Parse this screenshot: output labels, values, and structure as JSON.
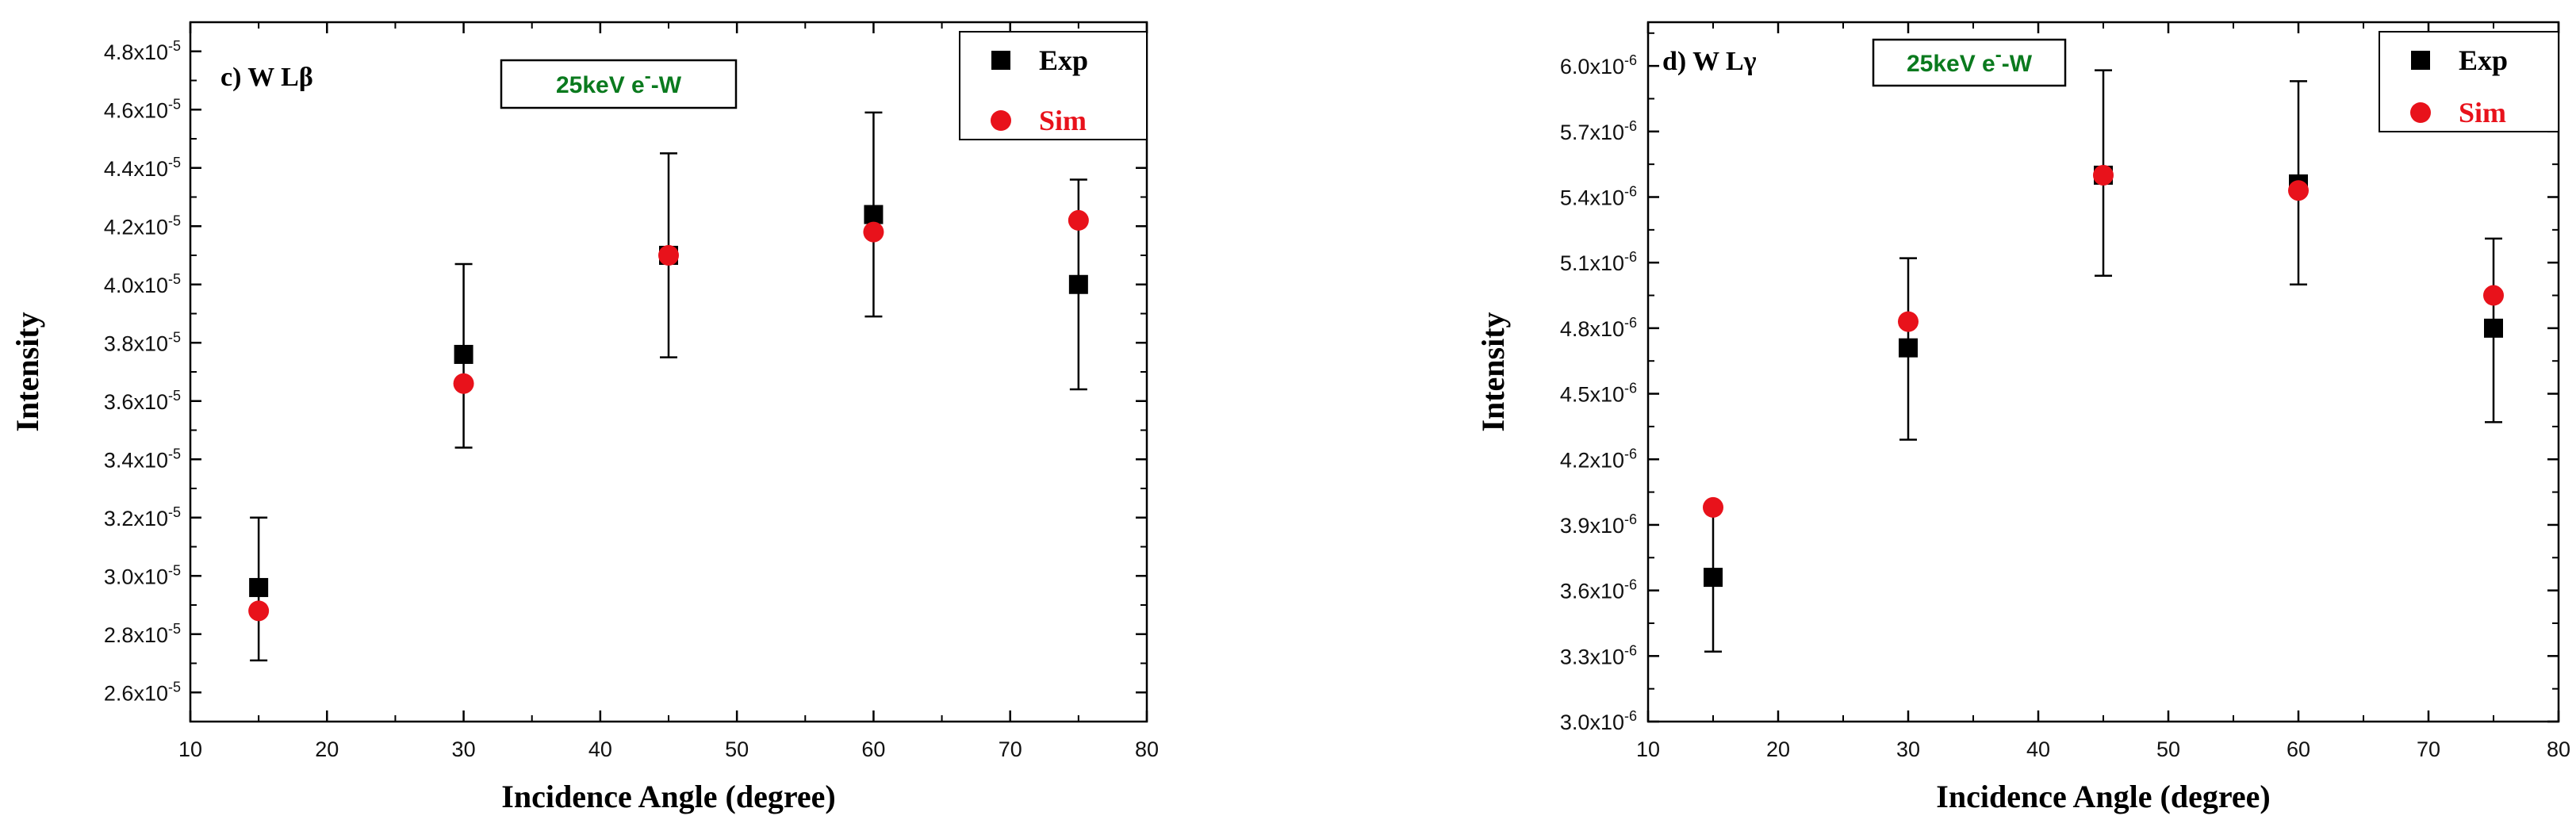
{
  "chart_data": [
    {
      "type": "scatter",
      "panel_label": "c) W Lβ",
      "badge": {
        "prefix": "25keV e",
        "sup": "-",
        "suffix": "-W",
        "color": "#0a7a1e"
      },
      "xlabel": "Incidence Angle (degree)",
      "ylabel": "Intensity",
      "xlim": [
        10,
        80
      ],
      "xticks": [
        10,
        20,
        30,
        40,
        50,
        60,
        70,
        80
      ],
      "ylim": [
        2.5e-05,
        4.9e-05
      ],
      "yticks": [
        {
          "value": 2.6e-05,
          "mant": "2.6x10",
          "exp": "-5"
        },
        {
          "value": 2.8e-05,
          "mant": "2.8x10",
          "exp": "-5"
        },
        {
          "value": 3e-05,
          "mant": "3.0x10",
          "exp": "-5"
        },
        {
          "value": 3.2e-05,
          "mant": "3.2x10",
          "exp": "-5"
        },
        {
          "value": 3.4e-05,
          "mant": "3.4x10",
          "exp": "-5"
        },
        {
          "value": 3.6e-05,
          "mant": "3.6x10",
          "exp": "-5"
        },
        {
          "value": 3.8e-05,
          "mant": "3.8x10",
          "exp": "-5"
        },
        {
          "value": 4e-05,
          "mant": "4.0x10",
          "exp": "-5"
        },
        {
          "value": 4.2e-05,
          "mant": "4.2x10",
          "exp": "-5"
        },
        {
          "value": 4.4e-05,
          "mant": "4.4x10",
          "exp": "-5"
        },
        {
          "value": 4.6e-05,
          "mant": "4.6x10",
          "exp": "-5"
        },
        {
          "value": 4.8e-05,
          "mant": "4.8x10",
          "exp": "-5"
        }
      ],
      "grid": false,
      "legend_position": "top-right",
      "series": [
        {
          "name": "Exp",
          "marker": "square",
          "color": "#000000",
          "x": [
            15,
            30,
            45,
            60,
            75
          ],
          "y": [
            2.96e-05,
            3.76e-05,
            4.1e-05,
            4.24e-05,
            4e-05
          ],
          "err_low": [
            2.71e-05,
            3.44e-05,
            3.75e-05,
            3.89e-05,
            3.64e-05
          ],
          "err_high": [
            3.2e-05,
            4.07e-05,
            4.45e-05,
            4.59e-05,
            4.36e-05
          ]
        },
        {
          "name": "Sim",
          "marker": "circle",
          "color": "#e8121b",
          "x": [
            15,
            30,
            45,
            60,
            75
          ],
          "y": [
            2.88e-05,
            3.66e-05,
            4.1e-05,
            4.18e-05,
            4.22e-05
          ]
        }
      ]
    },
    {
      "type": "scatter",
      "panel_label": "d) W Lγ",
      "badge": {
        "prefix": "25keV e",
        "sup": "-",
        "suffix": "-W",
        "color": "#0a7a1e"
      },
      "xlabel": "Incidence Angle (degree)",
      "ylabel": "Intensity",
      "xlim": [
        10,
        80
      ],
      "xticks": [
        10,
        20,
        30,
        40,
        50,
        60,
        70,
        80
      ],
      "ylim": [
        3e-06,
        6.2e-06
      ],
      "yticks": [
        {
          "value": 3e-06,
          "mant": "3.0x10",
          "exp": "-6"
        },
        {
          "value": 3.3e-06,
          "mant": "3.3x10",
          "exp": "-6"
        },
        {
          "value": 3.6e-06,
          "mant": "3.6x10",
          "exp": "-6"
        },
        {
          "value": 3.9e-06,
          "mant": "3.9x10",
          "exp": "-6"
        },
        {
          "value": 4.2e-06,
          "mant": "4.2x10",
          "exp": "-6"
        },
        {
          "value": 4.5e-06,
          "mant": "4.5x10",
          "exp": "-6"
        },
        {
          "value": 4.8e-06,
          "mant": "4.8x10",
          "exp": "-6"
        },
        {
          "value": 5.1e-06,
          "mant": "5.1x10",
          "exp": "-6"
        },
        {
          "value": 5.4e-06,
          "mant": "5.4x10",
          "exp": "-6"
        },
        {
          "value": 5.7e-06,
          "mant": "5.7x10",
          "exp": "-6"
        },
        {
          "value": 6e-06,
          "mant": "6.0x10",
          "exp": "-6"
        }
      ],
      "grid": false,
      "legend_position": "top-right",
      "series": [
        {
          "name": "Exp",
          "marker": "square",
          "color": "#000000",
          "x": [
            15,
            30,
            45,
            60,
            75
          ],
          "y": [
            3.66e-06,
            4.71e-06,
            5.5e-06,
            5.46e-06,
            4.8e-06
          ],
          "err_low": [
            3.32e-06,
            4.29e-06,
            5.04e-06,
            5e-06,
            4.37e-06
          ],
          "err_high": [
            4e-06,
            5.12e-06,
            5.98e-06,
            5.93e-06,
            5.21e-06
          ]
        },
        {
          "name": "Sim",
          "marker": "circle",
          "color": "#e8121b",
          "x": [
            15,
            30,
            45,
            60,
            75
          ],
          "y": [
            3.98e-06,
            4.83e-06,
            5.5e-06,
            5.43e-06,
            4.95e-06
          ]
        }
      ]
    }
  ]
}
